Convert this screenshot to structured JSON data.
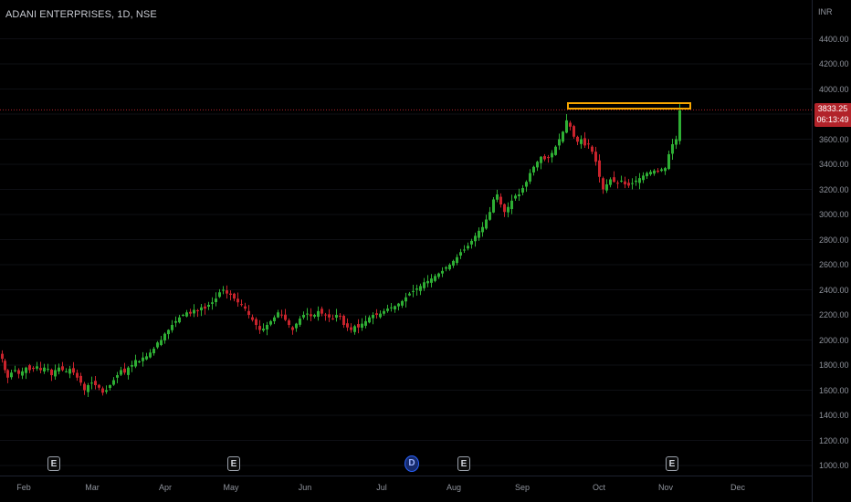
{
  "symbol_title": "ADANI ENTERPRISES, 1D, NSE",
  "currency": "INR",
  "current_price": "3833.25",
  "countdown": "06:13:49",
  "colors": {
    "up": "#26a69a",
    "up_body": "#2eae34",
    "down": "#c8232c",
    "highlight": "#f7a600",
    "price_line": "#b2232a"
  },
  "chart_data": {
    "type": "candlestick",
    "y_ticks": [
      "1000.00",
      "1200.00",
      "1400.00",
      "1600.00",
      "1800.00",
      "2000.00",
      "2200.00",
      "2400.00",
      "2600.00",
      "2800.00",
      "3000.00",
      "3200.00",
      "3400.00",
      "3600.00",
      "3800.00",
      "4000.00",
      "4200.00",
      "4400.00"
    ],
    "x_ticks": [
      "Feb",
      "Mar",
      "Apr",
      "May",
      "Jun",
      "Jul",
      "Aug",
      "Sep",
      "Oct",
      "Nov",
      "Dec"
    ],
    "ylim": [
      900,
      4500
    ],
    "close_path": [
      [
        0,
        1850
      ],
      [
        3,
        1760
      ],
      [
        6,
        1700
      ],
      [
        10,
        1740
      ],
      [
        14,
        1760
      ],
      [
        18,
        1730
      ],
      [
        22,
        1750
      ],
      [
        26,
        1780
      ],
      [
        30,
        1760
      ],
      [
        34,
        1770
      ],
      [
        38,
        1790
      ],
      [
        42,
        1760
      ],
      [
        46,
        1780
      ],
      [
        50,
        1770
      ],
      [
        54,
        1720
      ],
      [
        58,
        1760
      ],
      [
        62,
        1780
      ],
      [
        66,
        1760
      ],
      [
        70,
        1750
      ],
      [
        74,
        1770
      ],
      [
        78,
        1740
      ],
      [
        82,
        1700
      ],
      [
        86,
        1660
      ],
      [
        90,
        1600
      ],
      [
        94,
        1640
      ],
      [
        98,
        1660
      ],
      [
        102,
        1640
      ],
      [
        106,
        1620
      ],
      [
        110,
        1580
      ],
      [
        114,
        1600
      ],
      [
        118,
        1640
      ],
      [
        122,
        1680
      ],
      [
        126,
        1720
      ],
      [
        130,
        1760
      ],
      [
        134,
        1740
      ],
      [
        138,
        1780
      ],
      [
        142,
        1800
      ],
      [
        146,
        1840
      ],
      [
        150,
        1830
      ],
      [
        154,
        1860
      ],
      [
        158,
        1870
      ],
      [
        162,
        1900
      ],
      [
        166,
        1930
      ],
      [
        170,
        1980
      ],
      [
        174,
        2000
      ],
      [
        178,
        2050
      ],
      [
        182,
        2080
      ],
      [
        186,
        2120
      ],
      [
        190,
        2150
      ],
      [
        194,
        2180
      ],
      [
        198,
        2200
      ],
      [
        202,
        2220
      ],
      [
        206,
        2210
      ],
      [
        210,
        2240
      ],
      [
        214,
        2230
      ],
      [
        218,
        2260
      ],
      [
        222,
        2250
      ],
      [
        226,
        2280
      ],
      [
        230,
        2300
      ],
      [
        234,
        2330
      ],
      [
        238,
        2380
      ],
      [
        242,
        2400
      ],
      [
        246,
        2370
      ],
      [
        250,
        2360
      ],
      [
        254,
        2330
      ],
      [
        258,
        2300
      ],
      [
        262,
        2280
      ],
      [
        266,
        2250
      ],
      [
        270,
        2200
      ],
      [
        274,
        2160
      ],
      [
        278,
        2120
      ],
      [
        282,
        2080
      ],
      [
        286,
        2090
      ],
      [
        290,
        2120
      ],
      [
        294,
        2150
      ],
      [
        298,
        2180
      ],
      [
        302,
        2220
      ],
      [
        306,
        2200
      ],
      [
        310,
        2160
      ],
      [
        314,
        2120
      ],
      [
        318,
        2080
      ],
      [
        322,
        2130
      ],
      [
        326,
        2170
      ],
      [
        330,
        2200
      ],
      [
        334,
        2210
      ],
      [
        338,
        2190
      ],
      [
        342,
        2200
      ],
      [
        346,
        2230
      ],
      [
        350,
        2210
      ],
      [
        354,
        2200
      ],
      [
        358,
        2180
      ],
      [
        362,
        2170
      ],
      [
        366,
        2200
      ],
      [
        370,
        2190
      ],
      [
        374,
        2120
      ],
      [
        378,
        2100
      ],
      [
        382,
        2080
      ],
      [
        386,
        2110
      ],
      [
        390,
        2100
      ],
      [
        394,
        2130
      ],
      [
        398,
        2150
      ],
      [
        402,
        2180
      ],
      [
        406,
        2200
      ],
      [
        410,
        2200
      ],
      [
        414,
        2210
      ],
      [
        418,
        2230
      ],
      [
        422,
        2250
      ],
      [
        426,
        2260
      ],
      [
        430,
        2270
      ],
      [
        434,
        2290
      ],
      [
        438,
        2310
      ],
      [
        442,
        2340
      ],
      [
        446,
        2370
      ],
      [
        450,
        2390
      ],
      [
        454,
        2410
      ],
      [
        458,
        2430
      ],
      [
        462,
        2460
      ],
      [
        466,
        2470
      ],
      [
        470,
        2490
      ],
      [
        474,
        2510
      ],
      [
        478,
        2530
      ],
      [
        482,
        2550
      ],
      [
        486,
        2580
      ],
      [
        490,
        2600
      ],
      [
        494,
        2630
      ],
      [
        498,
        2660
      ],
      [
        502,
        2700
      ],
      [
        506,
        2720
      ],
      [
        510,
        2750
      ],
      [
        514,
        2790
      ],
      [
        518,
        2830
      ],
      [
        522,
        2870
      ],
      [
        526,
        2900
      ],
      [
        530,
        2960
      ],
      [
        534,
        3020
      ],
      [
        538,
        3120
      ],
      [
        542,
        3160
      ],
      [
        546,
        3080
      ],
      [
        550,
        3020
      ],
      [
        554,
        3060
      ],
      [
        558,
        3110
      ],
      [
        562,
        3150
      ],
      [
        566,
        3160
      ],
      [
        570,
        3210
      ],
      [
        574,
        3260
      ],
      [
        578,
        3330
      ],
      [
        582,
        3380
      ],
      [
        586,
        3420
      ],
      [
        590,
        3460
      ],
      [
        594,
        3440
      ],
      [
        598,
        3450
      ],
      [
        602,
        3490
      ],
      [
        606,
        3540
      ],
      [
        610,
        3600
      ],
      [
        614,
        3660
      ],
      [
        618,
        3750
      ],
      [
        622,
        3700
      ],
      [
        626,
        3620
      ],
      [
        630,
        3580
      ],
      [
        634,
        3600
      ],
      [
        638,
        3550
      ],
      [
        642,
        3560
      ],
      [
        646,
        3500
      ],
      [
        650,
        3420
      ],
      [
        654,
        3300
      ],
      [
        658,
        3200
      ],
      [
        662,
        3240
      ],
      [
        666,
        3280
      ],
      [
        670,
        3260
      ],
      [
        674,
        3250
      ],
      [
        678,
        3270
      ],
      [
        682,
        3240
      ],
      [
        686,
        3230
      ],
      [
        690,
        3250
      ],
      [
        694,
        3270
      ],
      [
        698,
        3290
      ],
      [
        702,
        3310
      ],
      [
        706,
        3330
      ],
      [
        710,
        3340
      ],
      [
        714,
        3350
      ],
      [
        718,
        3340
      ],
      [
        722,
        3360
      ],
      [
        726,
        3370
      ],
      [
        730,
        3480
      ],
      [
        734,
        3560
      ],
      [
        738,
        3600
      ],
      [
        742,
        3833
      ]
    ]
  },
  "event_badges": [
    {
      "label": "E",
      "type": "earnings"
    },
    {
      "label": "E",
      "type": "earnings"
    },
    {
      "label": "D",
      "type": "dividend"
    },
    {
      "label": "E",
      "type": "earnings"
    },
    {
      "label": "E",
      "type": "earnings"
    }
  ]
}
